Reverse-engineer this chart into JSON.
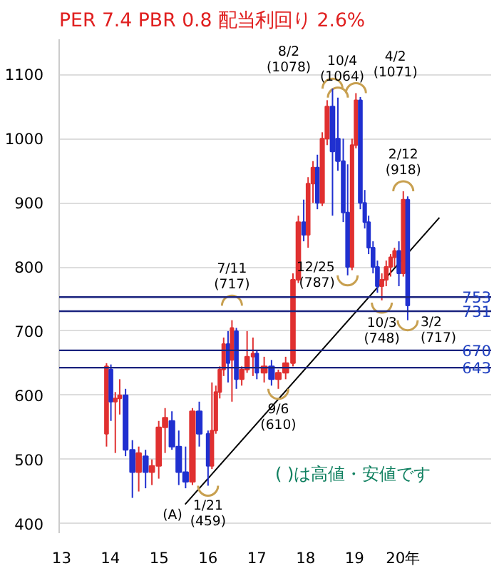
{
  "chart_data": {
    "type": "candlestick",
    "title": "PER 7.4 PBR 0.8 配当利回り 2.6%",
    "x": [
      13.92,
      14.01,
      14.1,
      14.19,
      14.31,
      14.45,
      14.58,
      14.72,
      14.85,
      14.99,
      15.12,
      15.26,
      15.4,
      15.54,
      15.68,
      15.82,
      16.0,
      16.08,
      16.16,
      16.24,
      16.32,
      16.41,
      16.49,
      16.58,
      16.69,
      16.8,
      16.92,
      17.0,
      17.15,
      17.3,
      17.44,
      17.59,
      17.74,
      17.85,
      17.96,
      18.05,
      18.15,
      18.24,
      18.34,
      18.44,
      18.55,
      18.66,
      18.77,
      18.86,
      18.95,
      19.03,
      19.12,
      19.21,
      19.29,
      19.38,
      19.47,
      19.56,
      19.65,
      19.74,
      19.82,
      19.91,
      20.0,
      20.09
    ],
    "ohlc": [
      [
        540,
        650,
        520,
        645
      ],
      [
        640,
        648,
        560,
        590
      ],
      [
        590,
        605,
        510,
        595
      ],
      [
        595,
        625,
        570,
        600
      ],
      [
        600,
        610,
        505,
        515
      ],
      [
        515,
        530,
        440,
        480
      ],
      [
        480,
        520,
        450,
        510
      ],
      [
        505,
        515,
        455,
        480
      ],
      [
        480,
        500,
        460,
        490
      ],
      [
        490,
        560,
        470,
        550
      ],
      [
        550,
        580,
        510,
        565
      ],
      [
        560,
        575,
        515,
        520
      ],
      [
        520,
        545,
        460,
        480
      ],
      [
        480,
        520,
        455,
        465
      ],
      [
        465,
        580,
        460,
        575
      ],
      [
        575,
        590,
        520,
        540
      ],
      [
        540,
        545,
        459,
        490
      ],
      [
        490,
        620,
        485,
        545
      ],
      [
        545,
        615,
        540,
        605
      ],
      [
        605,
        645,
        595,
        640
      ],
      [
        640,
        690,
        630,
        680
      ],
      [
        680,
        700,
        620,
        650
      ],
      [
        655,
        717,
        590,
        705
      ],
      [
        700,
        705,
        610,
        625
      ],
      [
        625,
        645,
        615,
        640
      ],
      [
        640,
        700,
        635,
        660
      ],
      [
        660,
        690,
        630,
        665
      ],
      [
        665,
        670,
        625,
        635
      ],
      [
        635,
        660,
        620,
        645
      ],
      [
        645,
        655,
        615,
        625
      ],
      [
        625,
        640,
        610,
        635
      ],
      [
        635,
        660,
        625,
        650
      ],
      [
        650,
        790,
        645,
        780
      ],
      [
        780,
        880,
        775,
        870
      ],
      [
        870,
        905,
        840,
        850
      ],
      [
        850,
        940,
        830,
        930
      ],
      [
        930,
        965,
        900,
        955
      ],
      [
        955,
        975,
        890,
        900
      ],
      [
        900,
        1010,
        895,
        1000
      ],
      [
        1000,
        1060,
        990,
        1050
      ],
      [
        1050,
        1078,
        880,
        980
      ],
      [
        1000,
        1064,
        950,
        965
      ],
      [
        965,
        1000,
        870,
        885
      ],
      [
        885,
        960,
        787,
        800
      ],
      [
        800,
        1000,
        795,
        990
      ],
      [
        990,
        1071,
        985,
        1060
      ],
      [
        1060,
        1065,
        890,
        900
      ],
      [
        900,
        920,
        860,
        870
      ],
      [
        870,
        880,
        820,
        830
      ],
      [
        830,
        840,
        790,
        800
      ],
      [
        800,
        810,
        760,
        770
      ],
      [
        770,
        790,
        748,
        780
      ],
      [
        780,
        810,
        770,
        800
      ],
      [
        800,
        820,
        785,
        815
      ],
      [
        815,
        830,
        800,
        825
      ],
      [
        825,
        840,
        770,
        790
      ],
      [
        790,
        918,
        785,
        905
      ],
      [
        905,
        910,
        717,
        740
      ]
    ],
    "colors": [
      "#e03030",
      "#2030d0",
      "#e03030",
      "#e03030",
      "#2030d0",
      "#2030d0",
      "#e03030",
      "#2030d0",
      "#e03030",
      "#e03030",
      "#e03030",
      "#2030d0",
      "#2030d0",
      "#2030d0",
      "#e03030",
      "#2030d0",
      "#2030d0",
      "#e03030",
      "#e03030",
      "#e03030",
      "#e03030",
      "#2030d0",
      "#e03030",
      "#2030d0",
      "#e03030",
      "#e03030",
      "#e03030",
      "#2030d0",
      "#e03030",
      "#2030d0",
      "#e03030",
      "#e03030",
      "#e03030",
      "#e03030",
      "#2030d0",
      "#e03030",
      "#e03030",
      "#2030d0",
      "#e03030",
      "#e03030",
      "#2030d0",
      "#2030d0",
      "#2030d0",
      "#2030d0",
      "#e03030",
      "#e03030",
      "#2030d0",
      "#2030d0",
      "#2030d0",
      "#2030d0",
      "#2030d0",
      "#e03030",
      "#e03030",
      "#e03030",
      "#e03030",
      "#2030d0",
      "#e03030",
      "#2030d0"
    ],
    "series": [
      {
        "type": "line",
        "x": [
          15.53,
          20.74
        ],
        "values": [
          430,
          877
        ],
        "color": "#000000"
      }
    ],
    "xlim": [
      12.95,
      21.8
    ],
    "ylim": [
      385,
      1155
    ],
    "xticks": [
      13,
      14,
      15,
      16,
      17,
      18,
      19,
      {
        "value": 20,
        "label": "20年"
      }
    ],
    "yticks": [
      400,
      500,
      600,
      700,
      800,
      900,
      1000,
      1100
    ],
    "grid": "y",
    "ref_lines": [
      {
        "axis": "y",
        "value": 753,
        "label": "753",
        "color": "#1a237e"
      },
      {
        "axis": "y",
        "value": 731,
        "label": "731",
        "color": "#1a237e"
      },
      {
        "axis": "y",
        "value": 670,
        "label": "670",
        "color": "#1a237e"
      },
      {
        "axis": "y",
        "value": 643,
        "label": "643",
        "color": "#1a237e"
      }
    ],
    "annotations": [
      {
        "text": "8/2\n(1078)",
        "x": 18.55,
        "y": 1078
      },
      {
        "text": "10/4\n(1064)",
        "x": 18.66,
        "y": 1064
      },
      {
        "text": "4/2\n(1071)",
        "x": 19.03,
        "y": 1071
      },
      {
        "text": "2/12\n(918)",
        "x": 20.0,
        "y": 918
      },
      {
        "text": "7/11\n(717)",
        "x": 16.49,
        "y": 717
      },
      {
        "text": "12/25\n(787)",
        "x": 18.86,
        "y": 787
      },
      {
        "text": "10/3\n(748)",
        "x": 19.56,
        "y": 748
      },
      {
        "text": "3/2\n(717)",
        "x": 20.09,
        "y": 717
      },
      {
        "text": "9/6\n(610)",
        "x": 17.44,
        "y": 610
      },
      {
        "text": "1/21\n(459)",
        "x": 16.0,
        "y": 459
      },
      {
        "text": "(A)",
        "x": 15.53,
        "y": 430
      },
      "( )は高値・安値です"
    ]
  }
}
